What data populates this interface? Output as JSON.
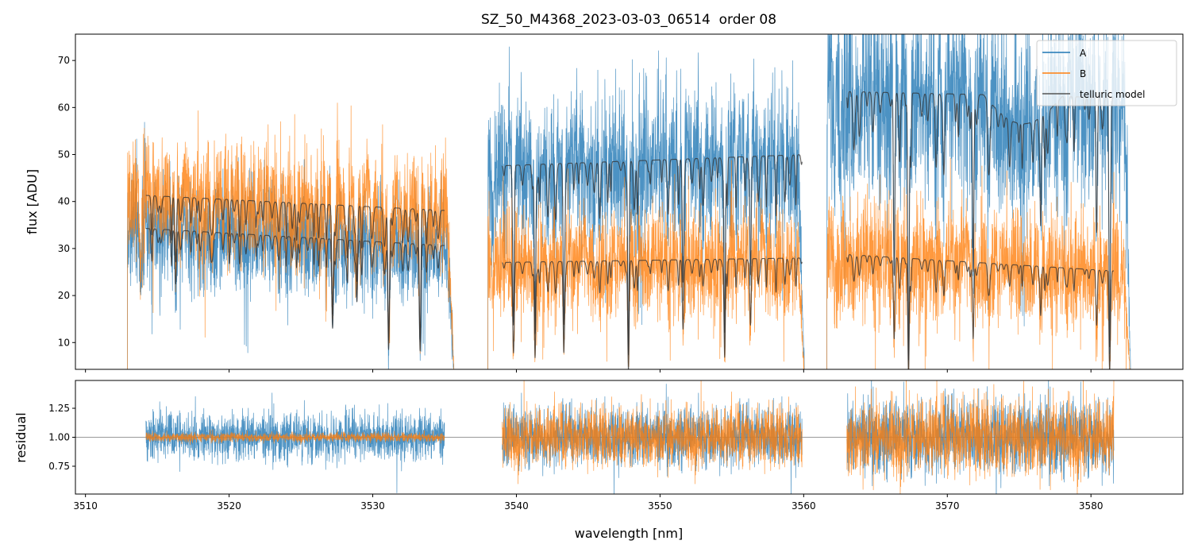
{
  "chart_data": {
    "type": "line",
    "title": "SZ_50_M4368_2023-03-03_06514  order 08",
    "xlabel": "wavelength [nm]",
    "panels": [
      {
        "name": "flux",
        "ylabel": "flux [ADU]",
        "ylim": [
          4.3,
          75.6
        ],
        "yticks": [
          10,
          20,
          30,
          40,
          50,
          60,
          70
        ],
        "show_xtick_labels": false
      },
      {
        "name": "residual",
        "ylabel": "residual",
        "ylim": [
          0.51,
          1.49
        ],
        "yticks": [
          "0.75",
          "1.00",
          "1.25"
        ],
        "reference_line": 1.0,
        "show_xtick_labels": true
      }
    ],
    "xlim": [
      3509.3,
      3586.4
    ],
    "xticks": [
      3510,
      3520,
      3530,
      3540,
      3550,
      3560,
      3570,
      3580
    ],
    "legend": {
      "placement": "top-right",
      "entries": [
        "A",
        "B",
        "telluric model"
      ]
    },
    "colors": {
      "A": "#1f77b4",
      "B": "#ff7f0e",
      "model": "#333333"
    },
    "segments": [
      {
        "data_range": [
          3512.9,
          3535.7
        ],
        "model_range": [
          3514.2,
          3535.0
        ],
        "A_continuum": [
          34.5,
          30.5
        ],
        "B_continuum": [
          41.5,
          38.0
        ],
        "A_noise": 0.17,
        "B_noise": 0.15,
        "A_resid_noise": 0.1,
        "B_resid_noise": 0.02,
        "strong_lines": [
          [
            3516.3,
            0.2
          ],
          [
            3524.7,
            0.2
          ],
          [
            3527.2,
            0.45
          ],
          [
            3528.9,
            0.4
          ],
          [
            3531.1,
            0.7
          ],
          [
            3533.3,
            0.7
          ]
        ]
      },
      {
        "data_range": [
          3538.0,
          3560.1
        ],
        "model_range": [
          3539.0,
          3559.9
        ],
        "A_continuum": [
          47.5,
          50.0
        ],
        "B_continuum": [
          27.0,
          28.0
        ],
        "A_noise": 0.16,
        "B_noise": 0.2,
        "A_resid_noise": 0.12,
        "B_resid_noise": 0.13,
        "strong_lines": [
          [
            3539.8,
            0.6
          ],
          [
            3541.3,
            0.75
          ],
          [
            3543.3,
            0.7
          ],
          [
            3547.8,
            0.85
          ],
          [
            3551.6,
            0.5
          ],
          [
            3554.5,
            0.75
          ],
          [
            3556.3,
            0.5
          ]
        ]
      },
      {
        "data_range": [
          3561.6,
          3582.8
        ],
        "model_range": [
          3563.0,
          3581.6
        ],
        "A_continuum": [
          63.5,
          62.0
        ],
        "B_continuum": [
          29.0,
          25.0
        ],
        "A_noise": 0.17,
        "B_noise": 0.22,
        "A_resid_noise": 0.15,
        "B_resid_noise": 0.17,
        "strong_lines": [
          [
            3566.3,
            0.6
          ],
          [
            3567.3,
            0.9
          ],
          [
            3571.8,
            0.6
          ],
          [
            3576.5,
            0.4
          ],
          [
            3580.4,
            0.4
          ],
          [
            3581.3,
            0.85
          ]
        ]
      }
    ]
  }
}
